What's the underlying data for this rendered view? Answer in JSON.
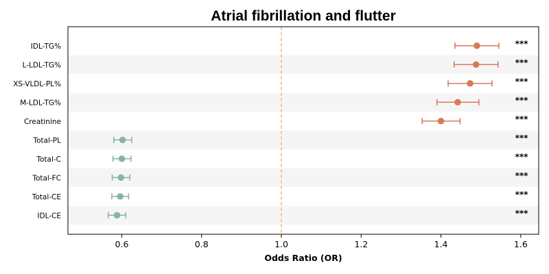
{
  "chart_data": {
    "type": "forest",
    "title": "Atrial fibrillation and flutter",
    "xlabel": "Odds Ratio (OR)",
    "ylabel": "",
    "xlim": [
      0.465,
      1.645
    ],
    "x_ticks": [
      0.6,
      0.8,
      1.0,
      1.2,
      1.4,
      1.6
    ],
    "x_tick_labels": [
      "0.6",
      "0.8",
      "1.0",
      "1.2",
      "1.4",
      "1.6"
    ],
    "reference_line": 1.0,
    "reference_line_color": "#f5b97a",
    "colors": {
      "positive": "#d9795a",
      "negative": "#88b59c",
      "band": "#f5f5f5"
    },
    "grid": false,
    "rows": [
      {
        "label": "IDL-TG%",
        "or": 1.49,
        "ci_low": 1.435,
        "ci_high": 1.545,
        "significance": "***",
        "direction": "positive"
      },
      {
        "label": "L-LDL-TG%",
        "or": 1.488,
        "ci_low": 1.433,
        "ci_high": 1.543,
        "significance": "***",
        "direction": "positive"
      },
      {
        "label": "XS-VLDL-PL%",
        "or": 1.473,
        "ci_low": 1.418,
        "ci_high": 1.528,
        "significance": "***",
        "direction": "positive"
      },
      {
        "label": "M-LDL-TG%",
        "or": 1.442,
        "ci_low": 1.39,
        "ci_high": 1.495,
        "significance": "***",
        "direction": "positive"
      },
      {
        "label": "Creatinine",
        "or": 1.4,
        "ci_low": 1.353,
        "ci_high": 1.448,
        "significance": "***",
        "direction": "positive"
      },
      {
        "label": "Total-PL",
        "or": 0.602,
        "ci_low": 0.58,
        "ci_high": 0.625,
        "significance": "***",
        "direction": "negative"
      },
      {
        "label": "Total-C",
        "or": 0.6,
        "ci_low": 0.578,
        "ci_high": 0.623,
        "significance": "***",
        "direction": "negative"
      },
      {
        "label": "Total-FC",
        "or": 0.598,
        "ci_low": 0.576,
        "ci_high": 0.62,
        "significance": "***",
        "direction": "negative"
      },
      {
        "label": "Total-CE",
        "or": 0.596,
        "ci_low": 0.575,
        "ci_high": 0.617,
        "significance": "***",
        "direction": "negative"
      },
      {
        "label": "IDL-CE",
        "or": 0.588,
        "ci_low": 0.566,
        "ci_high": 0.61,
        "significance": "***",
        "direction": "negative"
      }
    ]
  }
}
